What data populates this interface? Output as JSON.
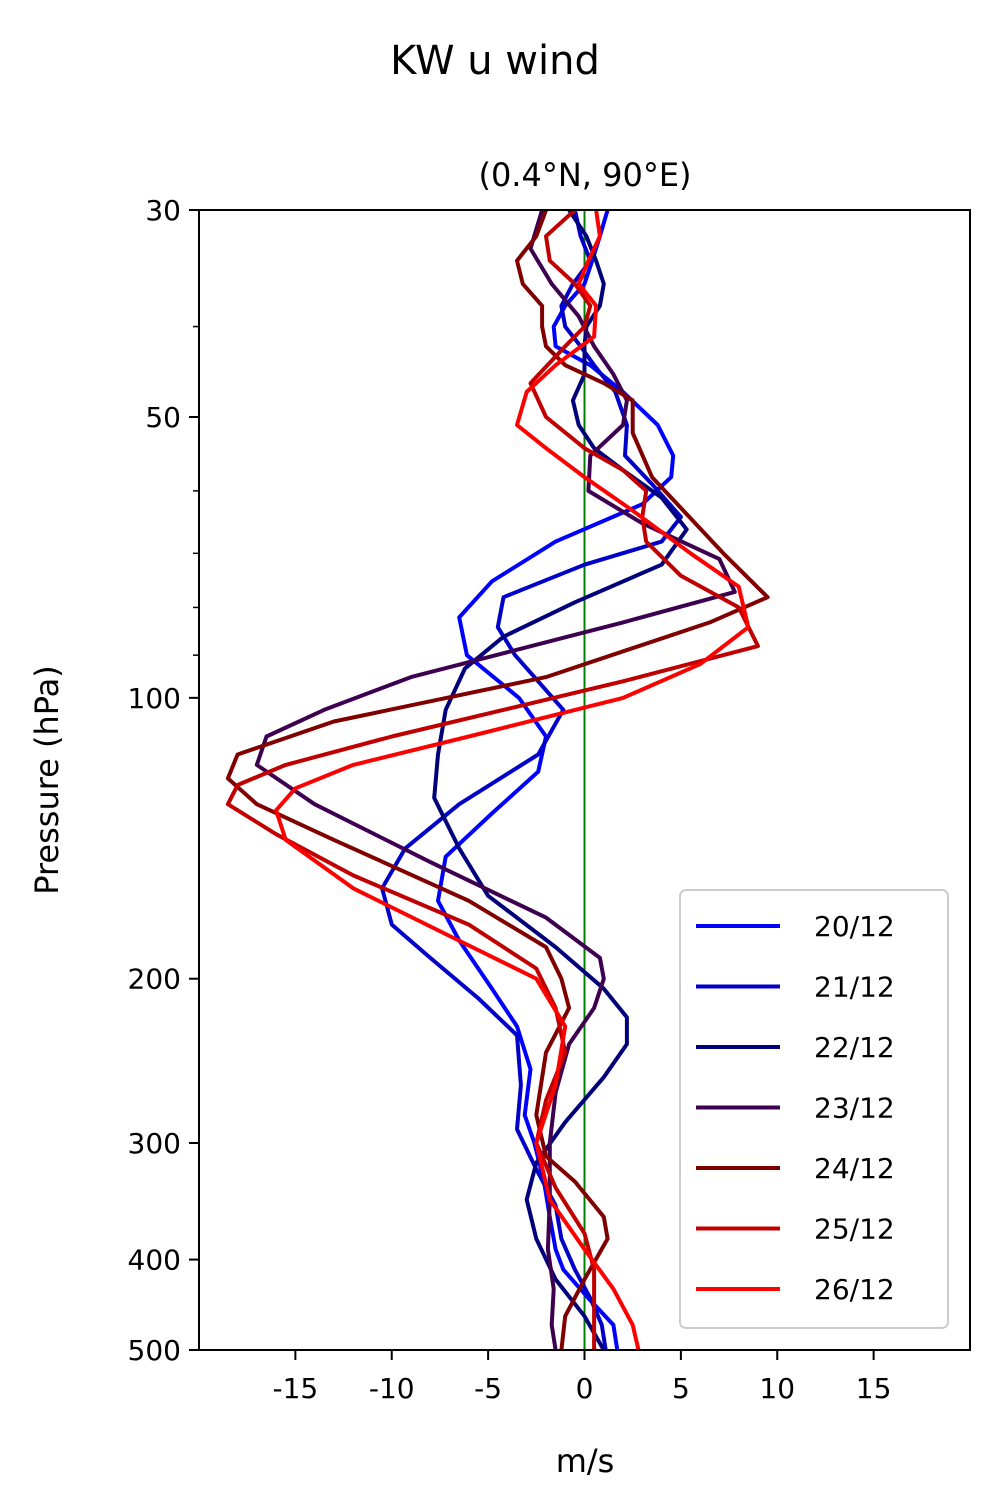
{
  "chart_data": {
    "type": "line",
    "title": "KW u wind",
    "subtitle": "(0.4°N, 90°E)",
    "xlabel": "m/s",
    "ylabel": "Pressure (hPa)",
    "xlim": [
      -20,
      20
    ],
    "ylim": [
      500,
      30
    ],
    "yscale": "log",
    "x_ticks": [
      -15,
      -10,
      -5,
      0,
      5,
      10,
      15
    ],
    "x_tick_labels": [
      "-15",
      "-10",
      "-5",
      "0",
      "5",
      "10",
      "15"
    ],
    "y_ticks": [
      30,
      50,
      100,
      200,
      300,
      400,
      500
    ],
    "y_tick_labels": [
      "30",
      "50",
      "100",
      "200",
      "300",
      "400",
      "500"
    ],
    "y_minor_ticks": [
      40,
      60,
      70,
      80,
      90
    ],
    "zero_line": {
      "x": 0,
      "color": "#008000"
    },
    "legend": {
      "location": "lower-right"
    },
    "series": [
      {
        "name": "20/12",
        "color": "#0000ff",
        "x": [
          1.2,
          0.8,
          0.4,
          0.0,
          -1.0,
          -1.6,
          -1.5,
          0.3,
          2.0,
          3.8,
          4.6,
          4.5,
          3.0,
          -1.5,
          -4.8,
          -6.5,
          -6.1,
          -3.4,
          -2.0,
          -2.4,
          -4.8,
          -7.2,
          -7.6,
          -6.5,
          -4.8,
          -3.5,
          -2.8,
          -3.1,
          -2.6,
          -2.1,
          -1.8,
          -1.5,
          -1.1,
          0.2,
          1.5,
          1.7
        ],
        "y": [
          30,
          32,
          34,
          36,
          38,
          40,
          42,
          44,
          47,
          51,
          55,
          58,
          62,
          68,
          75,
          82,
          90,
          100,
          110,
          120,
          133,
          148,
          165,
          182,
          205,
          225,
          250,
          280,
          300,
          330,
          360,
          390,
          410,
          440,
          470,
          500
        ]
      },
      {
        "name": "21/12",
        "color": "#0000c8",
        "x": [
          -0.5,
          -0.2,
          0.3,
          -0.6,
          -1.2,
          -1.0,
          -0.2,
          0.5,
          1.6,
          2.2,
          2.1,
          3.5,
          5.0,
          4.0,
          0.0,
          -4.2,
          -4.5,
          -3.6,
          -1.1,
          -2.4,
          -6.5,
          -9.3,
          -10.5,
          -10.0,
          -8.0,
          -5.5,
          -3.5,
          -3.3,
          -3.5,
          -2.5,
          -1.5,
          -1.2,
          -0.5,
          0.3,
          0.9,
          1.1
        ],
        "y": [
          30,
          32,
          34,
          36,
          38,
          40,
          42,
          44,
          47,
          51,
          55,
          59,
          64,
          68,
          72,
          78,
          84,
          90,
          103,
          115,
          130,
          145,
          160,
          175,
          190,
          210,
          230,
          260,
          290,
          320,
          350,
          380,
          410,
          440,
          470,
          500
        ]
      },
      {
        "name": "22/12",
        "color": "#00007a",
        "x": [
          -0.8,
          0.1,
          0.6,
          1.0,
          0.8,
          0.1,
          0.0,
          0.0,
          -0.6,
          -0.3,
          0.5,
          2.0,
          4.0,
          5.3,
          4.0,
          -0.5,
          -4.2,
          -6.2,
          -7.2,
          -7.6,
          -7.8,
          -6.5,
          -5.0,
          -1.5,
          1.0,
          2.2,
          2.2,
          1.0,
          -1.0,
          -2.5,
          -3.0,
          -2.5,
          -1.5,
          0.0,
          1.0
        ],
        "y": [
          30,
          32,
          34,
          36,
          38,
          40,
          42,
          45,
          48,
          51,
          54,
          57,
          61,
          66,
          72,
          79,
          86,
          93,
          103,
          115,
          128,
          145,
          163,
          185,
          205,
          220,
          235,
          255,
          285,
          315,
          345,
          380,
          420,
          460,
          500
        ]
      },
      {
        "name": "23/12",
        "color": "#3d0050",
        "x": [
          -2.2,
          -2.8,
          -1.7,
          -0.3,
          0.5,
          1.5,
          2.2,
          2.0,
          0.3,
          0.2,
          3.0,
          7.0,
          7.8,
          2.0,
          -9.0,
          -13.5,
          -16.5,
          -17.0,
          -14.0,
          -8.0,
          -2.0,
          0.8,
          1.0,
          0.5,
          -0.8,
          -1.5,
          -1.8,
          -1.8,
          -1.9,
          -1.6,
          -1.7,
          -1.5
        ],
        "y": [
          30,
          33,
          36,
          39,
          42,
          45,
          48,
          51,
          55,
          60,
          65,
          71,
          77,
          83,
          95,
          103,
          110,
          118,
          130,
          150,
          172,
          190,
          200,
          215,
          235,
          265,
          300,
          345,
          390,
          430,
          470,
          500
        ]
      },
      {
        "name": "24/12",
        "color": "#800000",
        "x": [
          -2.0,
          -2.5,
          -3.5,
          -3.2,
          -2.2,
          -2.2,
          -2.0,
          -1.0,
          1.0,
          2.5,
          2.5,
          3.5,
          7.2,
          9.5,
          6.5,
          -2.0,
          -13.0,
          -18.0,
          -18.5,
          -17.0,
          -13.0,
          -6.0,
          -2.0,
          -1.2,
          -0.8,
          -2.0,
          -2.5,
          -2.0,
          -0.5,
          1.0,
          1.2,
          0.0,
          -1.0,
          -1.2
        ],
        "y": [
          30,
          32,
          34,
          36,
          38,
          40,
          42,
          44,
          46,
          48,
          52,
          58,
          70,
          78,
          83,
          95,
          106,
          115,
          122,
          130,
          142,
          165,
          185,
          200,
          215,
          240,
          280,
          310,
          330,
          360,
          380,
          420,
          460,
          500
        ]
      },
      {
        "name": "25/12",
        "color": "#c00000",
        "x": [
          -0.5,
          -2.0,
          -1.8,
          -0.5,
          0.3,
          0.0,
          -1.0,
          -2.8,
          -2.0,
          0.0,
          2.0,
          3.2,
          3.0,
          3.2,
          5.0,
          8.0,
          9.0,
          2.0,
          -10.0,
          -15.5,
          -18.0,
          -18.5,
          -16.0,
          -12.0,
          -6.0,
          -2.5,
          -1.5,
          -1.0,
          -2.0,
          -2.5,
          -1.5,
          0.0,
          0.5,
          0.5,
          0.5
        ],
        "y": [
          30,
          32,
          34,
          36,
          38,
          40,
          42,
          46,
          50,
          54,
          57,
          60,
          64,
          68,
          74,
          80,
          88,
          96,
          110,
          118,
          124,
          130,
          140,
          155,
          175,
          195,
          215,
          240,
          270,
          300,
          335,
          375,
          410,
          450,
          500
        ]
      },
      {
        "name": "26/12",
        "color": "#ff0000",
        "x": [
          0.6,
          0.8,
          0.2,
          -0.3,
          0.6,
          0.5,
          -1.5,
          -3.0,
          -3.5,
          -2.0,
          0.0,
          2.5,
          5.5,
          8.0,
          8.5,
          6.0,
          2.0,
          -6.0,
          -12.0,
          -15.0,
          -16.0,
          -15.5,
          -12.0,
          -7.0,
          -2.5,
          -1.0,
          -1.5,
          -2.5,
          -1.8,
          0.0,
          1.5,
          2.5,
          2.8
        ],
        "y": [
          30,
          32,
          34,
          36,
          38,
          41,
          44,
          47,
          51,
          54,
          58,
          63,
          70,
          76,
          84,
          92,
          100,
          110,
          118,
          125,
          132,
          142,
          160,
          180,
          200,
          225,
          260,
          300,
          345,
          390,
          430,
          470,
          500
        ]
      }
    ]
  }
}
